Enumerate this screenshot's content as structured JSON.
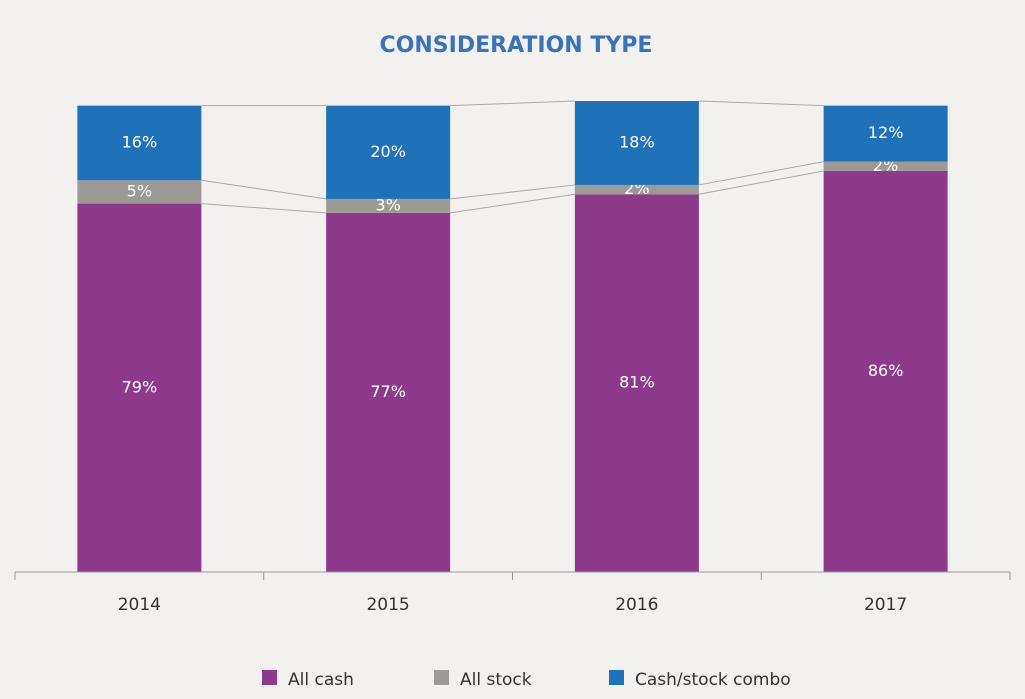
{
  "chart_data": {
    "type": "stacked_bar",
    "title": "CONSIDERATION TYPE",
    "categories": [
      "2014",
      "2015",
      "2016",
      "2017"
    ],
    "series": [
      {
        "name": "All cash",
        "color": "#8e3a8c",
        "values": [
          79,
          77,
          81,
          86
        ],
        "value_labels": [
          "79%",
          "77%",
          "81%",
          "86%"
        ]
      },
      {
        "name": "All stock",
        "color": "#9d9a96",
        "values": [
          5,
          3,
          2,
          2
        ],
        "value_labels": [
          "5%",
          "3%",
          "2%",
          "2%"
        ]
      },
      {
        "name": "Cash/stock combo",
        "color": "#1f72b8",
        "values": [
          16,
          20,
          18,
          12
        ],
        "value_labels": [
          "16%",
          "20%",
          "18%",
          "12%"
        ]
      }
    ],
    "legend": "bottom"
  }
}
